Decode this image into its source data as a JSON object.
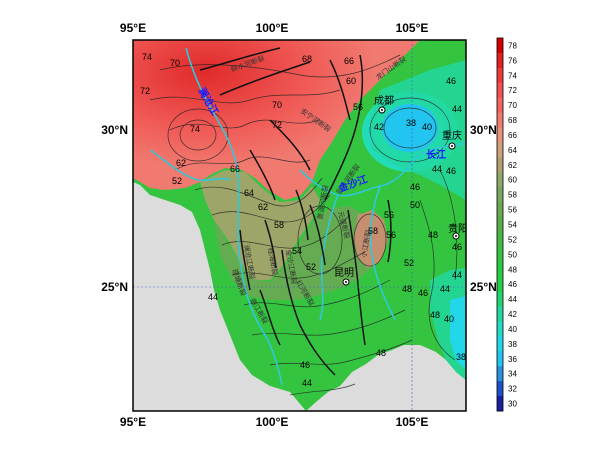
{
  "axes": {
    "lon_ticks": [
      "95°E",
      "100°E",
      "105°E"
    ],
    "lat_ticks": [
      "30°N",
      "25°N"
    ]
  },
  "colorbar": {
    "levels": [
      "78",
      "76",
      "74",
      "72",
      "70",
      "68",
      "66",
      "64",
      "62",
      "60",
      "58",
      "56",
      "54",
      "52",
      "50",
      "48",
      "46",
      "44",
      "42",
      "40",
      "38",
      "36",
      "34",
      "32",
      "30"
    ],
    "colors": [
      "#d40000",
      "#e62020",
      "#ee3a3a",
      "#f25050",
      "#f36560",
      "#f07a70",
      "#e8907a",
      "#cfa07c",
      "#b0a070",
      "#90a868",
      "#78a860",
      "#6aa854",
      "#5aae4a",
      "#46b846",
      "#34c440",
      "#28cc40",
      "#22d048",
      "#22d470",
      "#22d8a0",
      "#22dcc8",
      "#22d8e8",
      "#22c4f0",
      "#2a90e0",
      "#2050c8",
      "#1820a0"
    ]
  },
  "cities": [
    {
      "id": "chengdu",
      "name": "成都"
    },
    {
      "id": "chongqing",
      "name": "重庆"
    },
    {
      "id": "kunming",
      "name": "昆明"
    },
    {
      "id": "guiyang",
      "name": "贵阳"
    }
  ],
  "rivers": {
    "lancang": "澜沧江",
    "jinsha": "金沙江",
    "changjiang": "长江"
  },
  "contour_labels": [
    "74",
    "70",
    "72",
    "74",
    "68",
    "66",
    "60",
    "56",
    "46",
    "44",
    "42",
    "38",
    "40",
    "44",
    "46",
    "70",
    "72",
    "62",
    "66",
    "52",
    "64",
    "62",
    "58",
    "46",
    "50",
    "56",
    "58",
    "56",
    "54",
    "52",
    "52",
    "48",
    "46",
    "46",
    "44",
    "48",
    "48",
    "44",
    "40",
    "38",
    "44",
    "46",
    "48",
    "44"
  ],
  "faults": [
    "鲜水河断裂",
    "龙门山断裂",
    "安宁河断裂",
    "小江断裂",
    "红河断裂",
    "则木河断裂",
    "理塘断裂",
    "金沙江断裂",
    "澜沧江断裂",
    "程海断裂",
    "曲江断裂",
    "元谋断裂",
    "普渡河断裂"
  ]
}
